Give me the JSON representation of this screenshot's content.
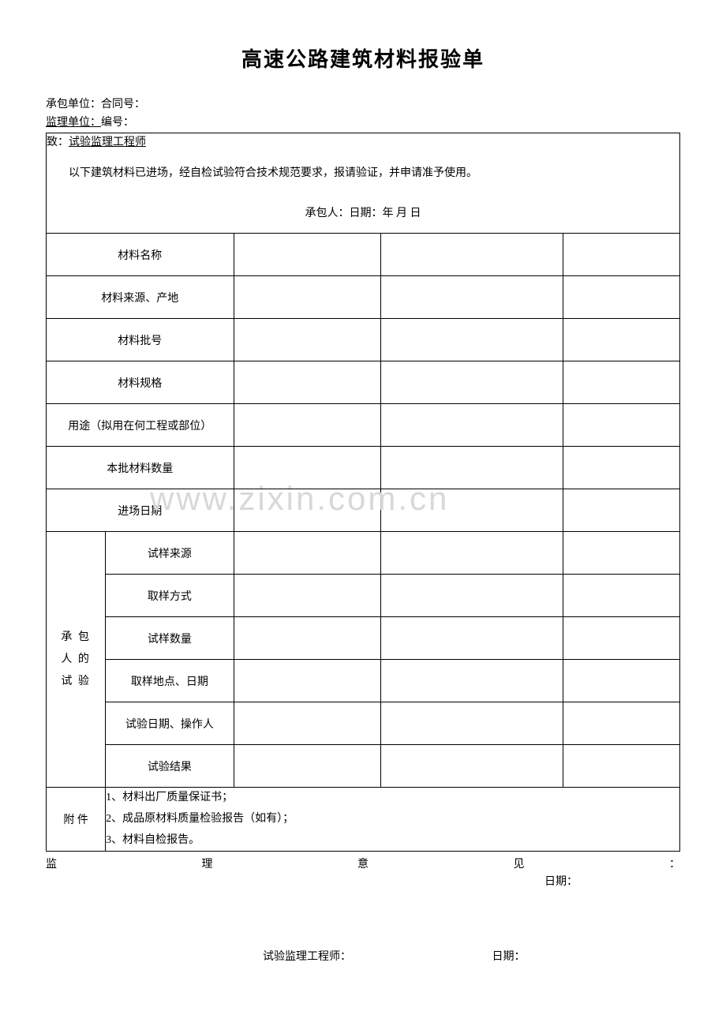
{
  "title": "高速公路建筑材料报验单",
  "header": {
    "line1": "承包单位：合同号：",
    "line2_prefix": "监理单位：",
    "line2_suffix": "编号：",
    "line2_underline": ""
  },
  "intro": {
    "to_label": "致：",
    "to_value": "试验监理工程师",
    "body": "以下建筑材料已进场，经自检试验符合技术规范要求，报请验证，并申请准予使用。",
    "signature": "承包人：日期：年 月 日"
  },
  "rows": {
    "material_name": "材料名称",
    "material_source": "材料来源、产地",
    "material_batch": "材料批号",
    "material_spec": "材料规格",
    "usage": "用途（拟用在何工程或部位）",
    "quantity": "本批材料数量",
    "entry_date": "进场日期"
  },
  "contractor_test": {
    "group_label": "承 包\n人 的\n试 验",
    "sample_source": "试样来源",
    "sample_method": "取样方式",
    "sample_quantity": "试样数量",
    "sample_location_date": "取样地点、日期",
    "test_date_operator": "试验日期、操作人",
    "test_result": "试验结果"
  },
  "attachment": {
    "label": "附 件",
    "item1": "1、材料出厂质量保证书；",
    "item2": "2、成品原材料质量检验报告（如有）；",
    "item3": "3、材料自检报告。"
  },
  "footer": {
    "supervision_chars": [
      "监",
      "理",
      "意",
      "见",
      "："
    ],
    "date_label": "日期：",
    "engineer_label": "试验监理工程师：",
    "engineer_date": "日期："
  },
  "watermark": "www.zixin.com.cn",
  "colors": {
    "text": "#000000",
    "background": "#ffffff",
    "border": "#000000",
    "watermark": "#d8d8d8"
  }
}
